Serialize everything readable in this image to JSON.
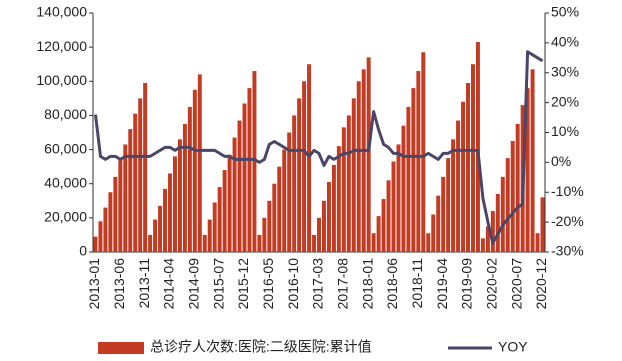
{
  "chart_data": {
    "type": "bar_line",
    "categories": [
      "2013-01",
      null,
      null,
      null,
      null,
      "2013-06",
      null,
      null,
      null,
      null,
      "2013-11",
      null,
      null,
      null,
      null,
      "2014-04",
      null,
      null,
      null,
      null,
      "2014-09",
      null,
      null,
      null,
      null,
      "2015-07",
      null,
      null,
      null,
      null,
      "2015-12",
      null,
      null,
      null,
      null,
      "2016-05",
      null,
      null,
      null,
      null,
      "2016-10",
      null,
      null,
      null,
      null,
      "2017-03",
      null,
      null,
      null,
      null,
      "2017-08",
      null,
      null,
      null,
      null,
      "2018-01",
      null,
      null,
      null,
      null,
      "2018-06",
      null,
      null,
      null,
      null,
      "2018-11",
      null,
      null,
      null,
      null,
      "2019-04",
      null,
      null,
      null,
      null,
      "2019-09",
      null,
      null,
      null,
      null,
      "2020-02",
      null,
      null,
      null,
      null,
      "2020-07",
      null,
      null,
      null,
      null,
      "2020-12"
    ],
    "series": [
      {
        "name": "总诊疗人次数:医院:二级医院:累计值",
        "color": "#c23b22",
        "values": [
          9000,
          18000,
          26000,
          35000,
          44000,
          54000,
          63000,
          72000,
          81000,
          90000,
          99000,
          10000,
          19000,
          27000,
          37000,
          46000,
          56000,
          66000,
          75000,
          85000,
          95000,
          104000,
          10000,
          19000,
          29000,
          38000,
          48000,
          57000,
          67000,
          77000,
          87000,
          96000,
          106000,
          10000,
          20000,
          30000,
          40000,
          50000,
          60000,
          70000,
          80000,
          90000,
          100000,
          110000,
          10000,
          20000,
          30000,
          41000,
          51000,
          62000,
          73000,
          80000,
          90000,
          100000,
          107000,
          114000,
          11000,
          21000,
          31000,
          42000,
          53000,
          63000,
          74000,
          85000,
          96000,
          106000,
          117000,
          11000,
          22000,
          33000,
          44000,
          55000,
          66000,
          77000,
          88000,
          99000,
          110000,
          123000,
          8000,
          15000,
          24000,
          34000,
          44000,
          55000,
          65000,
          75000,
          86000,
          96000,
          107000,
          11000,
          32000
        ]
      },
      {
        "name": "YOY",
        "color": "#4b4566",
        "axis": "y2",
        "values": [
          16,
          2,
          1,
          2,
          2,
          1,
          2,
          2,
          2,
          2,
          2,
          2,
          3,
          4,
          5,
          5,
          4,
          5,
          5,
          5,
          4,
          4,
          4,
          4,
          4,
          3,
          2,
          2,
          1,
          1,
          1,
          1,
          1,
          0,
          1,
          6,
          7,
          6,
          5,
          4,
          4,
          4,
          4,
          2,
          4,
          3,
          -1,
          2,
          1,
          2,
          3,
          3,
          4,
          4,
          4,
          4,
          17,
          11,
          6,
          5,
          3,
          3,
          2,
          2,
          2,
          2,
          2,
          3,
          2,
          1,
          3,
          3,
          4,
          4,
          4,
          4,
          4,
          4,
          -12,
          -20,
          -27,
          -24,
          -21,
          -19,
          -17,
          -15,
          -14,
          37,
          36,
          35,
          34
        ]
      }
    ],
    "ylim": [
      0,
      140000
    ],
    "yticks": [
      0,
      {
        "value": 20000,
        "label": "20,000"
      },
      {
        "value": 40000,
        "label": "40,000"
      },
      {
        "value": 60000,
        "label": "60,000"
      },
      {
        "value": 80000,
        "label": "80,000"
      },
      {
        "value": 100000,
        "label": "100,000"
      },
      {
        "value": 120000,
        "label": "120,000"
      },
      {
        "value": 140000,
        "label": "140,000"
      }
    ],
    "y2lim": [
      -30,
      50
    ],
    "y2ticks": [
      {
        "value": -30,
        "label": "-30%"
      },
      {
        "value": -20,
        "label": "-20%"
      },
      {
        "value": -10,
        "label": "-10%"
      },
      {
        "value": 0,
        "label": "0%"
      },
      {
        "value": 10,
        "label": "10%"
      },
      {
        "value": 20,
        "label": "20%"
      },
      {
        "value": 30,
        "label": "30%"
      },
      {
        "value": 40,
        "label": "40%"
      },
      {
        "value": 50,
        "label": "50%"
      }
    ],
    "legend": "bottom"
  }
}
